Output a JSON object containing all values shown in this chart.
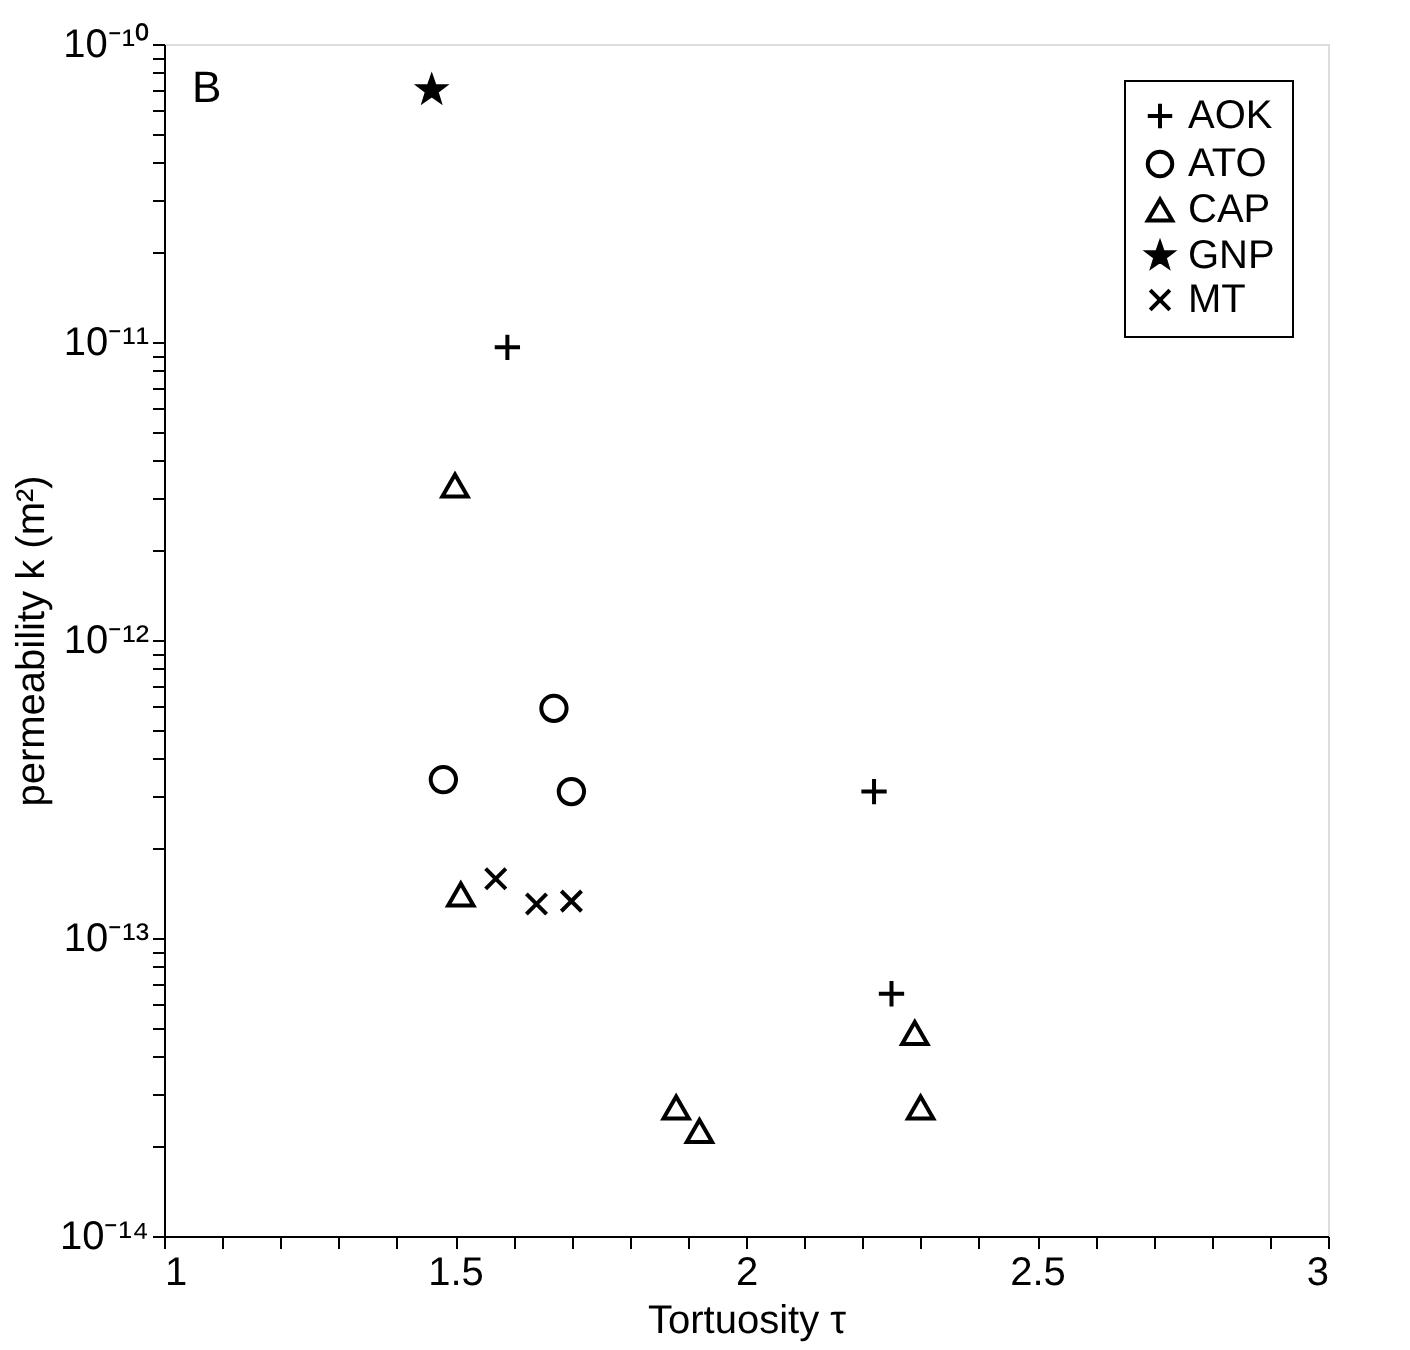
{
  "chart_data": {
    "type": "scatter",
    "xlabel": "Tortuosity τ",
    "ylabel": "permeability k (m²)",
    "log": "y",
    "legend": "top right",
    "grid": false,
    "annotations": [
      "B"
    ],
    "xlim": [
      1,
      3
    ],
    "xticks": [
      1,
      {
        "value": 1.1,
        "label": null
      },
      {
        "value": 1.2,
        "label": null
      },
      {
        "value": 1.3,
        "label": null
      },
      {
        "value": 1.4,
        "label": null
      },
      1.5,
      {
        "value": 1.6,
        "label": null
      },
      {
        "value": 1.7,
        "label": null
      },
      {
        "value": 1.8,
        "label": null
      },
      {
        "value": 1.9,
        "label": null
      },
      2,
      {
        "value": 2.1,
        "label": null
      },
      {
        "value": 2.2,
        "label": null
      },
      {
        "value": 2.3,
        "label": null
      },
      {
        "value": 2.4,
        "label": null
      },
      2.5,
      {
        "value": 2.6,
        "label": null
      },
      {
        "value": 2.7,
        "label": null
      },
      {
        "value": 2.8,
        "label": null
      },
      {
        "value": 2.9,
        "label": null
      },
      3
    ],
    "ylim": [
      1e-14,
      1e-10
    ],
    "yticks": [
      {
        "value": 1e-14,
        "label": "10⁻¹⁴"
      },
      {
        "value": 2e-14,
        "label": null
      },
      {
        "value": 3e-14,
        "label": null
      },
      {
        "value": 4e-14,
        "label": null
      },
      {
        "value": 5e-14,
        "label": null
      },
      {
        "value": 6e-14,
        "label": null
      },
      {
        "value": 7e-14,
        "label": null
      },
      {
        "value": 8e-14,
        "label": null
      },
      {
        "value": 9e-14,
        "label": null
      },
      {
        "value": 1e-13,
        "label": "10⁻¹³"
      },
      {
        "value": 2e-13,
        "label": null
      },
      {
        "value": 3e-13,
        "label": null
      },
      {
        "value": 4e-13,
        "label": null
      },
      {
        "value": 5e-13,
        "label": null
      },
      {
        "value": 6e-13,
        "label": null
      },
      {
        "value": 7e-13,
        "label": null
      },
      {
        "value": 8e-13,
        "label": null
      },
      {
        "value": 9e-13,
        "label": null
      },
      {
        "value": 1e-12,
        "label": "10⁻¹²"
      },
      {
        "value": 2e-12,
        "label": null
      },
      {
        "value": 3e-12,
        "label": null
      },
      {
        "value": 4e-12,
        "label": null
      },
      {
        "value": 5e-12,
        "label": null
      },
      {
        "value": 6e-12,
        "label": null
      },
      {
        "value": 7e-12,
        "label": null
      },
      {
        "value": 8e-12,
        "label": null
      },
      {
        "value": 9e-12,
        "label": null
      },
      {
        "value": 1e-11,
        "label": "10⁻¹¹"
      },
      {
        "value": 2e-11,
        "label": null
      },
      {
        "value": 3e-11,
        "label": null
      },
      {
        "value": 4e-11,
        "label": null
      },
      {
        "value": 5e-11,
        "label": null
      },
      {
        "value": 6e-11,
        "label": null
      },
      {
        "value": 7e-11,
        "label": null
      },
      {
        "value": 8e-11,
        "label": null
      },
      {
        "value": 9e-11,
        "label": null
      },
      {
        "value": 1e-10,
        "label": "10⁻¹⁰"
      }
    ],
    "series": [
      {
        "name": "AOK",
        "color": "#000000",
        "marker": "cross",
        "x": [
          1.59,
          2.22,
          2.25
        ],
        "values": [
          9.6e-12,
          3.1e-13,
          6.5e-14
        ]
      },
      {
        "name": "ATO",
        "color": "#000000",
        "marker": "circle",
        "x": [
          1.48,
          1.67,
          1.7
        ],
        "values": [
          3.4e-13,
          5.9e-13,
          3.1e-13
        ]
      },
      {
        "name": "CAP",
        "color": "#000000",
        "marker": "triangle",
        "x": [
          1.5,
          1.51,
          1.88,
          1.92,
          2.29,
          2.3
        ],
        "values": [
          3.3e-12,
          1.4e-13,
          2.7e-14,
          2.25e-14,
          4.8e-14,
          2.7e-14
        ]
      },
      {
        "name": "GNP",
        "color": "#000000",
        "marker": "star",
        "x": [
          1.46
        ],
        "values": [
          7e-11
        ]
      },
      {
        "name": "MT",
        "color": "#000000",
        "marker": "x",
        "x": [
          1.57,
          1.64,
          1.7
        ],
        "values": [
          1.58e-13,
          1.3e-13,
          1.33e-13
        ]
      }
    ]
  }
}
